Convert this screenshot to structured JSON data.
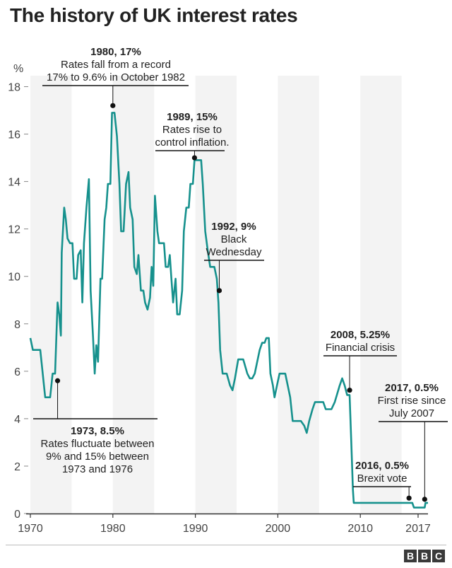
{
  "title": "The history of UK interest rates",
  "brand": {
    "logo_letters": [
      "B",
      "B",
      "C"
    ]
  },
  "colors": {
    "line": "#16918d",
    "band": "#f3f3f3",
    "axis": "#333333",
    "text": "#222222"
  },
  "chart_data": {
    "type": "line",
    "unit_label": "%",
    "ylim": [
      0,
      18
    ],
    "xlim": [
      1970,
      2018.2
    ],
    "y_ticks": [
      0,
      2,
      4,
      6,
      8,
      10,
      12,
      14,
      16,
      18
    ],
    "x_ticks": [
      {
        "value": 1970,
        "label": "1970"
      },
      {
        "value": 1980,
        "label": "1980"
      },
      {
        "value": 1990,
        "label": "1990"
      },
      {
        "value": 2000,
        "label": "2000"
      },
      {
        "value": 2010,
        "label": "2010"
      },
      {
        "value": 2017,
        "label": "2017"
      }
    ],
    "shaded_bands": [
      [
        1970,
        1975
      ],
      [
        1980,
        1985
      ],
      [
        1990,
        1995
      ],
      [
        2000,
        2005
      ],
      [
        2010,
        2015
      ]
    ],
    "series": [
      {
        "points": [
          [
            1970.0,
            7.4
          ],
          [
            1970.3,
            6.9
          ],
          [
            1971.2,
            6.9
          ],
          [
            1971.5,
            5.9
          ],
          [
            1971.8,
            4.9
          ],
          [
            1972.4,
            4.9
          ],
          [
            1972.7,
            5.9
          ],
          [
            1973.0,
            5.9
          ],
          [
            1973.3,
            8.9
          ],
          [
            1973.5,
            8.4
          ],
          [
            1973.7,
            7.5
          ],
          [
            1973.8,
            11.0
          ],
          [
            1974.1,
            12.9
          ],
          [
            1974.3,
            12.4
          ],
          [
            1974.5,
            11.6
          ],
          [
            1974.8,
            11.4
          ],
          [
            1975.1,
            11.4
          ],
          [
            1975.3,
            9.9
          ],
          [
            1975.6,
            9.9
          ],
          [
            1975.8,
            10.9
          ],
          [
            1976.1,
            11.1
          ],
          [
            1976.3,
            8.9
          ],
          [
            1976.5,
            11.4
          ],
          [
            1976.8,
            12.9
          ],
          [
            1977.1,
            14.1
          ],
          [
            1977.3,
            9.4
          ],
          [
            1977.6,
            7.4
          ],
          [
            1977.8,
            5.9
          ],
          [
            1978.0,
            7.1
          ],
          [
            1978.2,
            6.4
          ],
          [
            1978.5,
            9.9
          ],
          [
            1978.7,
            9.9
          ],
          [
            1979.0,
            12.4
          ],
          [
            1979.2,
            12.9
          ],
          [
            1979.4,
            13.9
          ],
          [
            1979.7,
            13.9
          ],
          [
            1979.9,
            16.9
          ],
          [
            1980.2,
            16.9
          ],
          [
            1980.5,
            15.9
          ],
          [
            1980.8,
            13.9
          ],
          [
            1981.0,
            11.9
          ],
          [
            1981.3,
            11.9
          ],
          [
            1981.6,
            13.9
          ],
          [
            1981.9,
            14.4
          ],
          [
            1982.1,
            12.9
          ],
          [
            1982.4,
            12.4
          ],
          [
            1982.6,
            10.4
          ],
          [
            1982.9,
            10.1
          ],
          [
            1983.1,
            10.9
          ],
          [
            1983.4,
            9.4
          ],
          [
            1983.7,
            9.4
          ],
          [
            1983.9,
            8.9
          ],
          [
            1984.2,
            8.6
          ],
          [
            1984.5,
            9.1
          ],
          [
            1984.7,
            10.4
          ],
          [
            1984.9,
            9.6
          ],
          [
            1985.1,
            13.4
          ],
          [
            1985.4,
            11.9
          ],
          [
            1985.6,
            11.4
          ],
          [
            1985.9,
            11.4
          ],
          [
            1986.2,
            11.4
          ],
          [
            1986.4,
            10.4
          ],
          [
            1986.7,
            10.4
          ],
          [
            1986.9,
            10.9
          ],
          [
            1987.1,
            9.9
          ],
          [
            1987.3,
            8.9
          ],
          [
            1987.6,
            9.9
          ],
          [
            1987.8,
            8.4
          ],
          [
            1988.1,
            8.4
          ],
          [
            1988.4,
            9.4
          ],
          [
            1988.6,
            11.9
          ],
          [
            1988.9,
            12.9
          ],
          [
            1989.2,
            12.9
          ],
          [
            1989.4,
            13.9
          ],
          [
            1989.7,
            13.9
          ],
          [
            1989.9,
            14.9
          ],
          [
            1990.7,
            14.9
          ],
          [
            1990.9,
            13.9
          ],
          [
            1991.2,
            11.9
          ],
          [
            1991.5,
            11.1
          ],
          [
            1991.8,
            10.4
          ],
          [
            1992.3,
            10.4
          ],
          [
            1992.6,
            9.9
          ],
          [
            1992.8,
            8.9
          ],
          [
            1993.0,
            6.9
          ],
          [
            1993.3,
            5.9
          ],
          [
            1993.8,
            5.9
          ],
          [
            1994.2,
            5.4
          ],
          [
            1994.5,
            5.2
          ],
          [
            1994.8,
            5.7
          ],
          [
            1995.2,
            6.5
          ],
          [
            1995.8,
            6.5
          ],
          [
            1996.3,
            5.9
          ],
          [
            1996.6,
            5.7
          ],
          [
            1996.9,
            5.7
          ],
          [
            1997.2,
            5.9
          ],
          [
            1997.5,
            6.4
          ],
          [
            1997.8,
            6.9
          ],
          [
            1998.1,
            7.2
          ],
          [
            1998.4,
            7.2
          ],
          [
            1998.6,
            7.4
          ],
          [
            1998.9,
            7.4
          ],
          [
            1999.1,
            5.9
          ],
          [
            1999.4,
            5.4
          ],
          [
            1999.6,
            4.9
          ],
          [
            1999.9,
            5.4
          ],
          [
            2000.2,
            5.9
          ],
          [
            2000.9,
            5.9
          ],
          [
            2001.2,
            5.4
          ],
          [
            2001.5,
            4.9
          ],
          [
            2001.8,
            3.9
          ],
          [
            2002.8,
            3.9
          ],
          [
            2003.2,
            3.7
          ],
          [
            2003.5,
            3.4
          ],
          [
            2003.8,
            3.9
          ],
          [
            2004.2,
            4.4
          ],
          [
            2004.5,
            4.7
          ],
          [
            2005.5,
            4.7
          ],
          [
            2005.8,
            4.4
          ],
          [
            2006.5,
            4.4
          ],
          [
            2006.9,
            4.7
          ],
          [
            2007.5,
            5.4
          ],
          [
            2007.8,
            5.7
          ],
          [
            2008.1,
            5.4
          ],
          [
            2008.4,
            5.0
          ],
          [
            2008.7,
            5.0
          ],
          [
            2008.9,
            3.0
          ],
          [
            2009.1,
            1.0
          ],
          [
            2009.2,
            0.45
          ],
          [
            2016.3,
            0.45
          ],
          [
            2016.5,
            0.25
          ],
          [
            2017.8,
            0.25
          ],
          [
            2017.9,
            0.45
          ],
          [
            2018.2,
            0.45
          ]
        ]
      }
    ],
    "annotations": [
      {
        "id": "a1980",
        "head": "1980, 17%",
        "lines": [
          "Rates fall from a record",
          "17% to 9.6% in October 1982"
        ],
        "dot": [
          1980.0,
          17.2
        ]
      },
      {
        "id": "a1989",
        "head": "1989, 15%",
        "lines": [
          "Rates rise to",
          "control inflation."
        ],
        "dot": [
          1989.9,
          15.0
        ]
      },
      {
        "id": "a1992",
        "head": "1992, 9%",
        "lines": [
          "Black",
          "Wednesday"
        ],
        "dot": [
          1992.9,
          9.4
        ]
      },
      {
        "id": "a2008",
        "head": "2008, 5.25%",
        "lines": [
          "Financial crisis"
        ],
        "dot": [
          2008.7,
          5.2
        ]
      },
      {
        "id": "a2017",
        "head": "2017, 0.5%",
        "lines": [
          "First rise since",
          "July 2007"
        ],
        "dot": [
          2017.8,
          0.6
        ]
      },
      {
        "id": "a1973",
        "head": "1973, 8.5%",
        "lines": [
          "Rates fluctuate between",
          "9% and 15% between",
          "1973 and 1976"
        ],
        "dot": [
          1973.3,
          5.6
        ]
      },
      {
        "id": "a2016",
        "head": "2016, 0.5%",
        "lines": [
          "Brexit vote"
        ],
        "dot": [
          2015.9,
          0.65
        ]
      }
    ]
  }
}
